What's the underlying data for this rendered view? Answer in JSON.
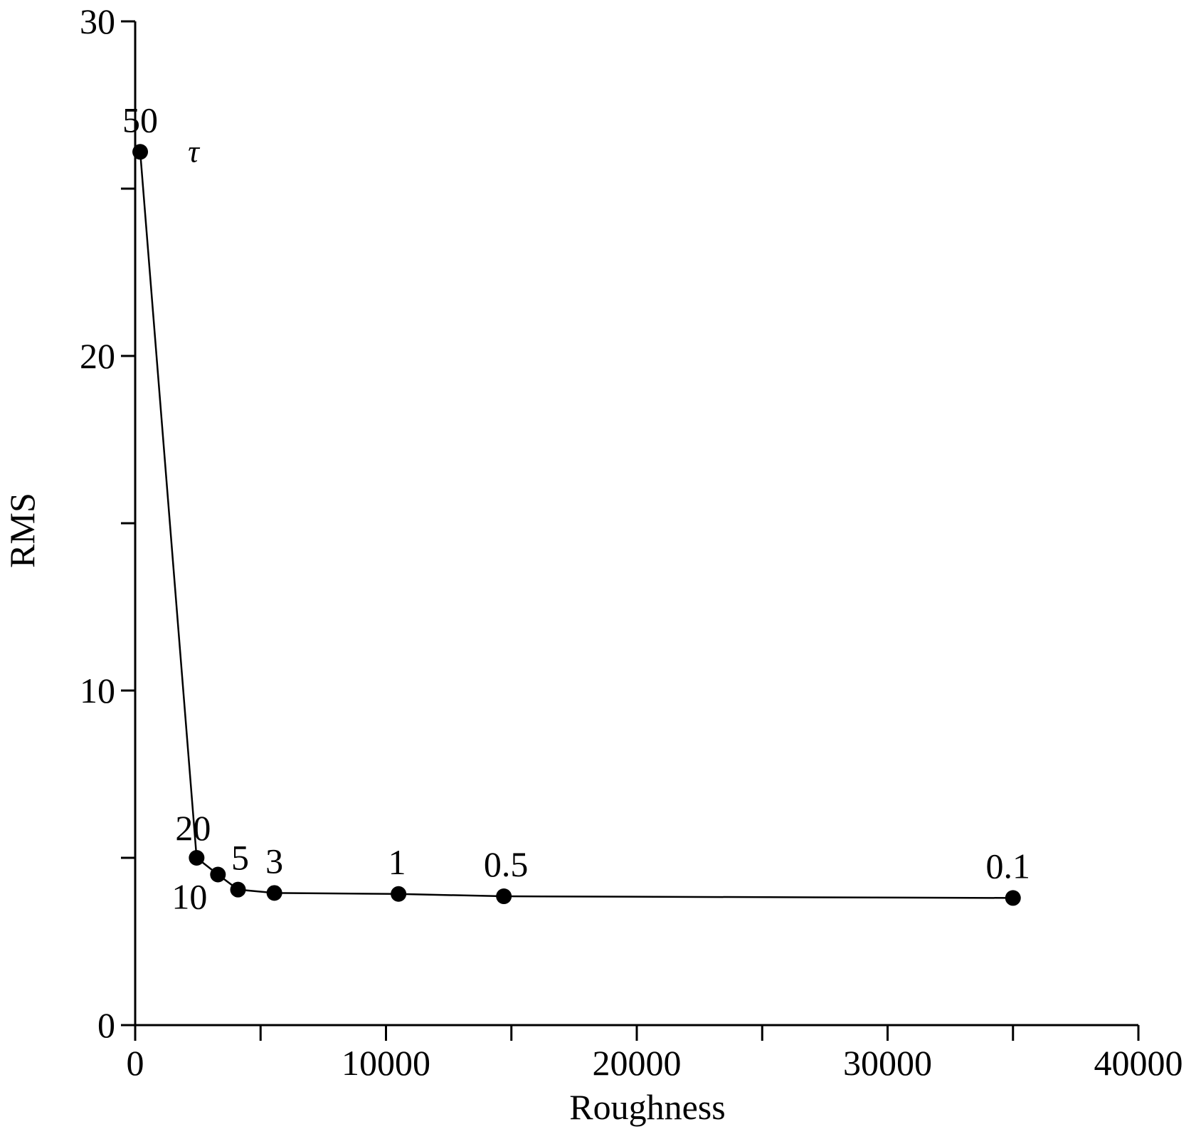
{
  "chart_data": {
    "type": "line",
    "xlabel": "Roughness",
    "ylabel": "RMS",
    "xlim": [
      0,
      40000
    ],
    "ylim": [
      0,
      30
    ],
    "x_ticks": [
      "0",
      "10000",
      "20000",
      "30000",
      "40000"
    ],
    "y_ticks": [
      "0",
      "10",
      "20",
      "30"
    ],
    "x_minor_step": 5000,
    "y_minor_step": 5,
    "grid": false,
    "legend": "none",
    "annotation": "τ",
    "series": [
      {
        "points": [
          {
            "label": "50",
            "x": 200,
            "y": 26.1
          },
          {
            "label": "20",
            "x": 2450,
            "y": 5.0
          },
          {
            "label": "10",
            "x": 3300,
            "y": 4.5
          },
          {
            "label": "5",
            "x": 4100,
            "y": 4.05
          },
          {
            "label": "3",
            "x": 5550,
            "y": 3.95
          },
          {
            "label": "1",
            "x": 10500,
            "y": 3.92
          },
          {
            "label": "0.5",
            "x": 14700,
            "y": 3.85
          },
          {
            "label": "0.1",
            "x": 35000,
            "y": 3.8
          }
        ]
      }
    ]
  }
}
